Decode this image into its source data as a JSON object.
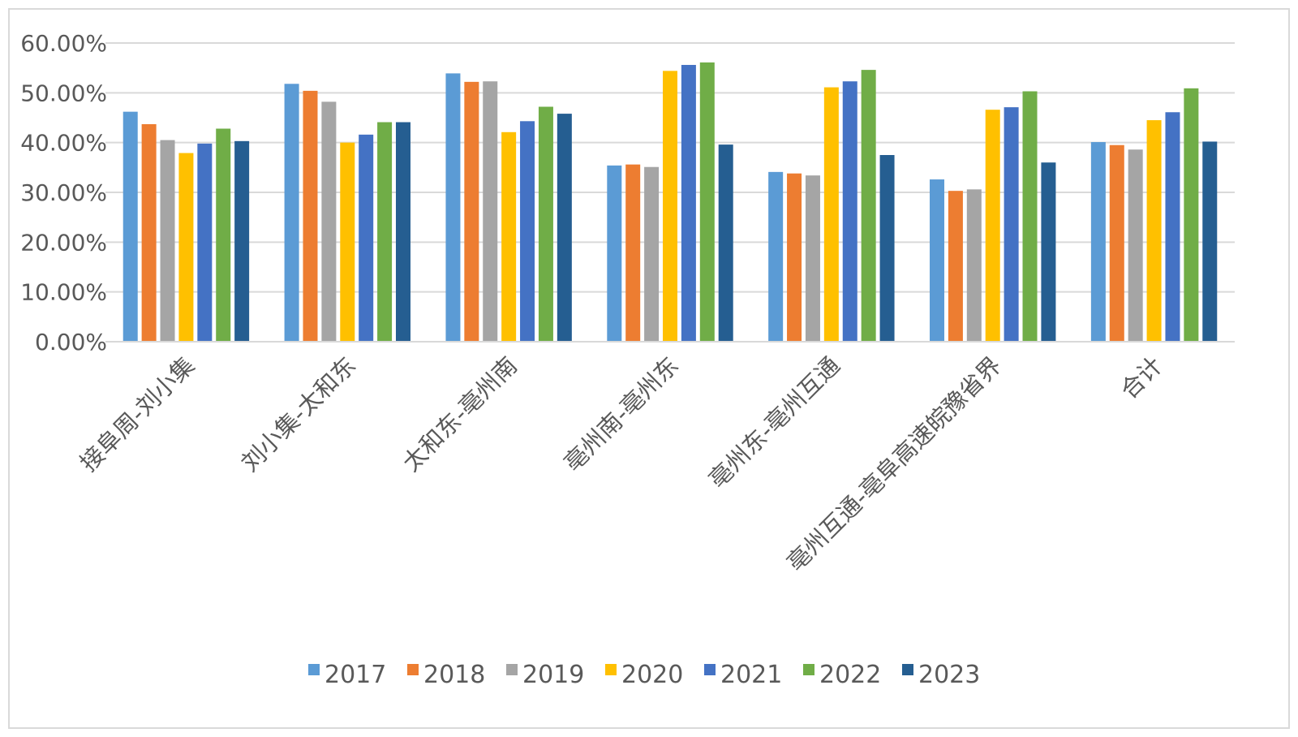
{
  "chart_data": {
    "type": "bar",
    "categories": [
      "接阜周-刘小集",
      "刘小集-太和东",
      "太和东-亳州南",
      "亳州南-亳州东",
      "亳州东-亳州互通",
      "亳州互通-亳阜高速皖豫省界",
      "合计"
    ],
    "series": [
      {
        "name": "2017",
        "color": "#5b9bd5",
        "values": [
          46.2,
          51.8,
          53.9,
          35.4,
          34.1,
          32.6,
          40.1
        ]
      },
      {
        "name": "2018",
        "color": "#ed7d31",
        "values": [
          43.7,
          50.4,
          52.2,
          35.6,
          33.8,
          30.3,
          39.5
        ]
      },
      {
        "name": "2019",
        "color": "#a5a5a5",
        "values": [
          40.5,
          48.2,
          52.3,
          35.1,
          33.4,
          30.6,
          38.6
        ]
      },
      {
        "name": "2020",
        "color": "#ffc000",
        "values": [
          37.9,
          40.0,
          42.1,
          54.4,
          51.1,
          46.6,
          44.5
        ]
      },
      {
        "name": "2021",
        "color": "#4472c4",
        "values": [
          39.8,
          41.6,
          44.3,
          55.6,
          52.3,
          47.1,
          46.1
        ]
      },
      {
        "name": "2022",
        "color": "#70ad47",
        "values": [
          42.8,
          44.1,
          47.2,
          56.1,
          54.6,
          50.3,
          50.9
        ]
      },
      {
        "name": "2023",
        "color": "#255e91",
        "values": [
          40.3,
          44.1,
          45.8,
          39.6,
          37.5,
          36.0,
          40.2
        ]
      }
    ],
    "y_ticks": [
      "0.00%",
      "10.00%",
      "20.00%",
      "30.00%",
      "40.00%",
      "50.00%",
      "60.00%"
    ],
    "ylim": [
      0,
      60
    ],
    "unit": "%",
    "grid": true,
    "legend_position": "bottom",
    "title": "",
    "xlabel": "",
    "ylabel": ""
  }
}
